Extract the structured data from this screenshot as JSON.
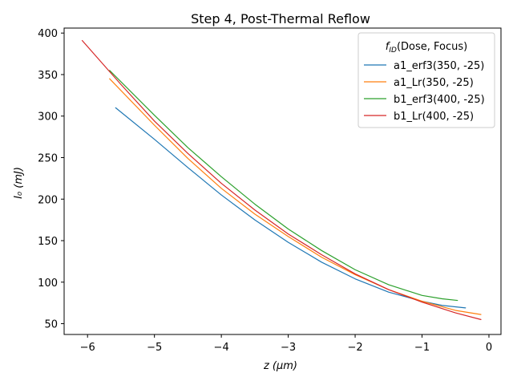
{
  "chart_data": {
    "type": "line",
    "title": "Step 4, Post-Thermal Reflow",
    "xlabel": "z (μm)",
    "ylabel": "I₀ (mJ)",
    "xlim": [
      -6.35,
      0.18
    ],
    "ylim": [
      37,
      406
    ],
    "xticks": [
      -6,
      -5,
      -4,
      -3,
      -2,
      -1,
      0
    ],
    "xtick_labels": [
      "−6",
      "−5",
      "−4",
      "−3",
      "−2",
      "−1",
      "0"
    ],
    "yticks": [
      50,
      100,
      150,
      200,
      250,
      300,
      350,
      400
    ],
    "ytick_labels": [
      "50",
      "100",
      "150",
      "200",
      "250",
      "300",
      "350",
      "400"
    ],
    "grid": false,
    "legend": {
      "placement": "top-right",
      "title": "f_ID(Dose, Focus)"
    },
    "series": [
      {
        "name": "a1_erf3(350, -25)",
        "color": "#1f77b4",
        "points": [
          [
            -5.58,
            310
          ],
          [
            -5.0,
            272
          ],
          [
            -4.5,
            238
          ],
          [
            -4.0,
            205
          ],
          [
            -3.5,
            175
          ],
          [
            -3.0,
            148
          ],
          [
            -2.5,
            124
          ],
          [
            -2.0,
            104
          ],
          [
            -1.5,
            88
          ],
          [
            -1.0,
            77
          ],
          [
            -0.7,
            72
          ],
          [
            -0.35,
            69
          ]
        ]
      },
      {
        "name": "a1_Lr(350, -25)",
        "color": "#ff7f0e",
        "points": [
          [
            -5.67,
            345
          ],
          [
            -5.0,
            289
          ],
          [
            -4.5,
            249
          ],
          [
            -4.0,
            213
          ],
          [
            -3.5,
            182
          ],
          [
            -3.0,
            155
          ],
          [
            -2.5,
            130
          ],
          [
            -2.0,
            109
          ],
          [
            -1.5,
            91
          ],
          [
            -1.0,
            77
          ],
          [
            -0.5,
            66
          ],
          [
            -0.12,
            61
          ]
        ]
      },
      {
        "name": "b1_erf3(400, -25)",
        "color": "#2ca02c",
        "points": [
          [
            -5.67,
            355
          ],
          [
            -5.0,
            301
          ],
          [
            -4.5,
            262
          ],
          [
            -4.0,
            227
          ],
          [
            -3.5,
            194
          ],
          [
            -3.0,
            164
          ],
          [
            -2.5,
            138
          ],
          [
            -2.0,
            115
          ],
          [
            -1.5,
            97
          ],
          [
            -1.0,
            84
          ],
          [
            -0.7,
            80
          ],
          [
            -0.47,
            78
          ]
        ]
      },
      {
        "name": "b1_Lr(400, -25)",
        "color": "#d62728",
        "points": [
          [
            -6.08,
            391
          ],
          [
            -5.5,
            338
          ],
          [
            -5.0,
            294
          ],
          [
            -4.5,
            255
          ],
          [
            -4.0,
            219
          ],
          [
            -3.5,
            187
          ],
          [
            -3.0,
            158
          ],
          [
            -2.5,
            133
          ],
          [
            -2.0,
            110
          ],
          [
            -1.5,
            91
          ],
          [
            -1.0,
            76
          ],
          [
            -0.5,
            63
          ],
          [
            -0.12,
            55
          ]
        ]
      }
    ]
  }
}
